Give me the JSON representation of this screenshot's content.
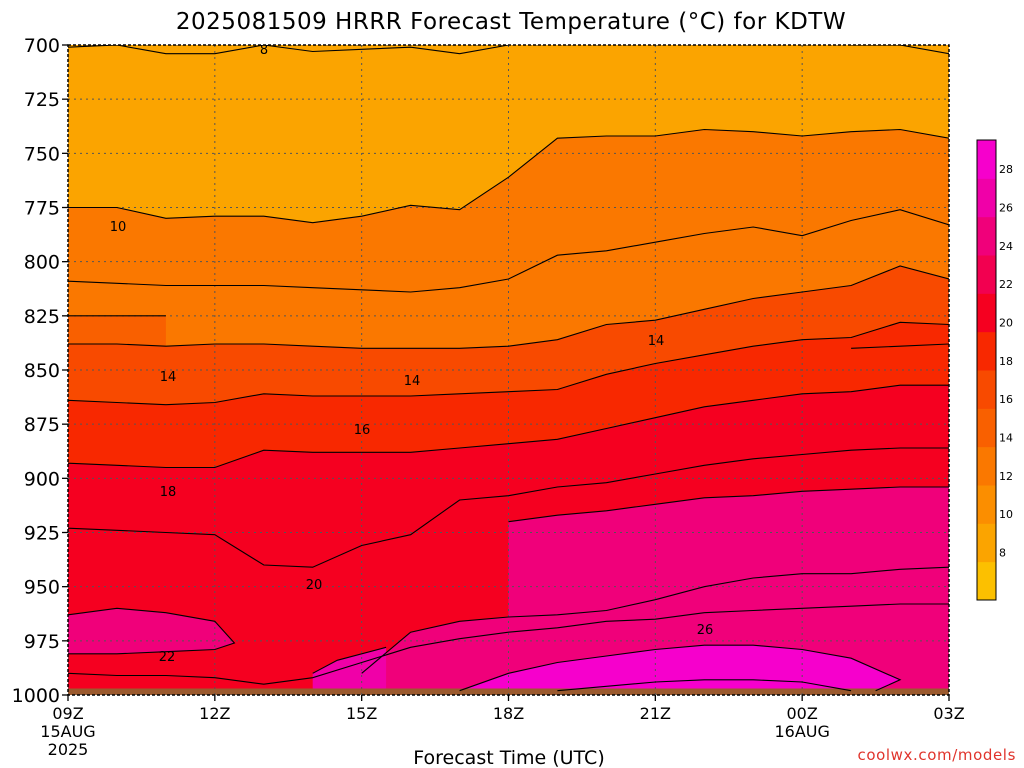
{
  "chart_data": {
    "type": "heatmap",
    "title": "2025081509 HRRR Forecast Temperature (°C) for KDTW",
    "xlabel": "Forecast Time (UTC)",
    "ylabel": "",
    "y_axis": {
      "ticks": [
        700,
        725,
        750,
        775,
        800,
        825,
        850,
        875,
        900,
        925,
        950,
        975,
        1000
      ],
      "tick_labels": [
        "700",
        "725",
        "750",
        "775",
        "800",
        "825",
        "850",
        "875",
        "900",
        "925",
        "950",
        "975",
        "1000"
      ],
      "range": [
        700,
        1000
      ],
      "inverted": true
    },
    "x_axis": {
      "ticks": [
        9,
        12,
        15,
        18,
        21,
        24,
        27
      ],
      "tick_labels": [
        "09Z",
        "12Z",
        "15Z",
        "18Z",
        "21Z",
        "00Z",
        "03Z"
      ],
      "date_labels": [
        {
          "at": 9,
          "lines": [
            "15AUG",
            "2025"
          ]
        },
        {
          "at": 24,
          "lines": [
            "16AUG"
          ]
        }
      ],
      "range": [
        9,
        27
      ]
    },
    "grid": true,
    "colorbar": {
      "labels": [
        "8",
        "10",
        "12",
        "14",
        "16",
        "18",
        "20",
        "22",
        "24",
        "26",
        "28"
      ],
      "colors": [
        "#fcc000",
        "#fba400",
        "#fb8e00",
        "#fa7800",
        "#f96000",
        "#f84a00",
        "#f82800",
        "#f50020",
        "#f20050",
        "#f0007a",
        "#f000a8",
        "#f600cc"
      ]
    },
    "contours": [
      {
        "level": 8,
        "label": "8",
        "points": [
          [
            9,
            701
          ],
          [
            10,
            700
          ],
          [
            11,
            704
          ],
          [
            12,
            704
          ],
          [
            13,
            700
          ],
          [
            14,
            703
          ],
          [
            15,
            702
          ],
          [
            16,
            701
          ],
          [
            17,
            704
          ],
          [
            18,
            700
          ]
        ]
      },
      {
        "level": 8,
        "label": "",
        "points": [
          [
            25,
            700
          ],
          [
            26,
            700
          ],
          [
            27,
            704
          ]
        ]
      },
      {
        "level": 10,
        "label": "10",
        "points": [
          [
            9,
            775
          ],
          [
            10,
            775
          ],
          [
            11,
            780
          ],
          [
            12,
            779
          ],
          [
            13,
            779
          ],
          [
            14,
            782
          ],
          [
            15,
            779
          ],
          [
            16,
            774
          ],
          [
            17,
            776
          ],
          [
            18,
            761
          ],
          [
            19,
            743
          ],
          [
            20,
            742
          ],
          [
            21,
            742
          ],
          [
            22,
            739
          ],
          [
            23,
            740
          ],
          [
            24,
            742
          ],
          [
            25,
            740
          ],
          [
            26,
            739
          ],
          [
            27,
            743
          ]
        ]
      },
      {
        "level": 12,
        "label": "",
        "points": [
          [
            9,
            809
          ],
          [
            10,
            810
          ],
          [
            11,
            811
          ],
          [
            12,
            811
          ],
          [
            13,
            811
          ],
          [
            14,
            812
          ],
          [
            15,
            813
          ],
          [
            16,
            814
          ],
          [
            17,
            812
          ],
          [
            18,
            808
          ],
          [
            19,
            797
          ],
          [
            20,
            795
          ],
          [
            21,
            791
          ],
          [
            22,
            787
          ],
          [
            23,
            784
          ],
          [
            24,
            788
          ],
          [
            25,
            781
          ],
          [
            26,
            776
          ],
          [
            27,
            783
          ]
        ]
      },
      {
        "level": 12,
        "label": "",
        "points": [
          [
            9,
            825
          ],
          [
            10,
            825
          ],
          [
            11,
            825
          ]
        ]
      },
      {
        "level": 14,
        "label": "14",
        "points": [
          [
            9,
            838
          ],
          [
            10,
            838
          ],
          [
            11,
            839
          ],
          [
            12,
            838
          ],
          [
            13,
            838
          ],
          [
            14,
            839
          ],
          [
            15,
            840
          ],
          [
            16,
            840
          ],
          [
            17,
            840
          ],
          [
            18,
            839
          ],
          [
            19,
            836
          ],
          [
            20,
            829
          ],
          [
            21,
            827
          ],
          [
            22,
            822
          ],
          [
            23,
            817
          ],
          [
            24,
            814
          ],
          [
            25,
            811
          ],
          [
            26,
            802
          ],
          [
            27,
            808
          ]
        ]
      },
      {
        "level": 14,
        "label": "",
        "points": [
          [
            25,
            840
          ],
          [
            26,
            839
          ],
          [
            27,
            838
          ]
        ]
      },
      {
        "level": 16,
        "label": "16",
        "points": [
          [
            9,
            864
          ],
          [
            10,
            865
          ],
          [
            11,
            866
          ],
          [
            12,
            865
          ],
          [
            13,
            861
          ],
          [
            14,
            862
          ],
          [
            15,
            862
          ],
          [
            16,
            862
          ],
          [
            17,
            861
          ],
          [
            18,
            860
          ],
          [
            19,
            859
          ],
          [
            20,
            852
          ],
          [
            21,
            847
          ],
          [
            22,
            843
          ],
          [
            23,
            839
          ],
          [
            24,
            836
          ],
          [
            25,
            835
          ],
          [
            26,
            828
          ],
          [
            27,
            829
          ]
        ]
      },
      {
        "level": 18,
        "label": "18",
        "points": [
          [
            9,
            893
          ],
          [
            10,
            894
          ],
          [
            11,
            895
          ],
          [
            12,
            895
          ],
          [
            13,
            887
          ],
          [
            14,
            888
          ],
          [
            15,
            888
          ],
          [
            16,
            888
          ],
          [
            17,
            886
          ],
          [
            18,
            884
          ],
          [
            19,
            882
          ],
          [
            20,
            877
          ],
          [
            21,
            872
          ],
          [
            22,
            867
          ],
          [
            23,
            864
          ],
          [
            24,
            861
          ],
          [
            25,
            860
          ],
          [
            26,
            857
          ],
          [
            27,
            857
          ]
        ]
      },
      {
        "level": 20,
        "label": "20",
        "points": [
          [
            9,
            923
          ],
          [
            10,
            924
          ],
          [
            11,
            925
          ],
          [
            12,
            926
          ],
          [
            13,
            940
          ],
          [
            14,
            941
          ],
          [
            15,
            931
          ],
          [
            16,
            926
          ],
          [
            17,
            910
          ],
          [
            18,
            908
          ],
          [
            19,
            904
          ],
          [
            20,
            902
          ],
          [
            21,
            898
          ],
          [
            22,
            894
          ],
          [
            23,
            891
          ],
          [
            24,
            889
          ],
          [
            25,
            887
          ],
          [
            26,
            886
          ],
          [
            27,
            886
          ]
        ]
      },
      {
        "level": 22,
        "label": "22",
        "points": [
          [
            9,
            963
          ],
          [
            10,
            960
          ],
          [
            11,
            962
          ],
          [
            12,
            966
          ],
          [
            12.4,
            976
          ],
          [
            12,
            979
          ],
          [
            11,
            980
          ],
          [
            10,
            981
          ],
          [
            9,
            981
          ]
        ]
      },
      {
        "level": 22,
        "label": "",
        "points": [
          [
            15,
            990
          ],
          [
            16,
            971
          ],
          [
            17,
            966
          ],
          [
            18,
            964
          ],
          [
            19,
            963
          ],
          [
            20,
            961
          ],
          [
            21,
            956
          ],
          [
            22,
            950
          ],
          [
            23,
            946
          ],
          [
            24,
            944
          ],
          [
            25,
            944
          ],
          [
            26,
            942
          ],
          [
            27,
            941
          ]
        ]
      },
      {
        "level": 22,
        "label": "",
        "points": [
          [
            18,
            920
          ],
          [
            19,
            917
          ],
          [
            20,
            915
          ],
          [
            21,
            912
          ],
          [
            22,
            909
          ],
          [
            23,
            908
          ],
          [
            24,
            906
          ],
          [
            25,
            905
          ],
          [
            26,
            904
          ],
          [
            27,
            904
          ]
        ]
      },
      {
        "level": 24,
        "label": "",
        "points": [
          [
            9,
            990
          ],
          [
            10,
            991
          ],
          [
            11,
            991
          ],
          [
            12,
            992
          ],
          [
            13,
            995
          ],
          [
            14,
            992
          ],
          [
            15,
            985
          ],
          [
            16,
            978
          ],
          [
            17,
            974
          ],
          [
            18,
            971
          ],
          [
            19,
            969
          ],
          [
            20,
            966
          ],
          [
            21,
            965
          ],
          [
            22,
            962
          ],
          [
            23,
            961
          ],
          [
            24,
            960
          ],
          [
            25,
            959
          ],
          [
            26,
            958
          ],
          [
            27,
            958
          ]
        ]
      },
      {
        "level": 24,
        "label": "",
        "points": [
          [
            14,
            990
          ],
          [
            14.5,
            984
          ],
          [
            15.5,
            978
          ]
        ]
      },
      {
        "level": 26,
        "label": "26",
        "points": [
          [
            17,
            998
          ],
          [
            18,
            990
          ],
          [
            19,
            985
          ],
          [
            20,
            982
          ],
          [
            21,
            979
          ],
          [
            22,
            977
          ],
          [
            23,
            977
          ],
          [
            24,
            979
          ],
          [
            25,
            983
          ],
          [
            26,
            993
          ],
          [
            25.5,
            998
          ]
        ]
      },
      {
        "level": 28,
        "label": "",
        "points": [
          [
            19,
            998
          ],
          [
            20,
            996
          ],
          [
            21,
            994
          ],
          [
            22,
            993
          ],
          [
            23,
            993
          ],
          [
            24,
            994
          ],
          [
            25,
            998
          ]
        ]
      }
    ],
    "contour_labels": [
      {
        "text": "8",
        "x": 9.0,
        "y": 701
      },
      {
        "text": "10",
        "x": 9.0,
        "y": 775
      },
      {
        "text": "14",
        "x": 9.0,
        "y": 839
      },
      {
        "text": "14",
        "x": 9.0,
        "y": 840
      },
      {
        "text": "14",
        "x": 9.0,
        "y": 829
      },
      {
        "text": "16",
        "x": 9.0,
        "y": 862
      },
      {
        "text": "18",
        "x": 9.0,
        "y": 895
      },
      {
        "text": "20",
        "x": 9.0,
        "y": 941
      },
      {
        "text": "22",
        "x": 9.0,
        "y": 981
      },
      {
        "text": "26",
        "x": 9.0,
        "y": 977
      }
    ],
    "source": "coolwx.com/models"
  }
}
